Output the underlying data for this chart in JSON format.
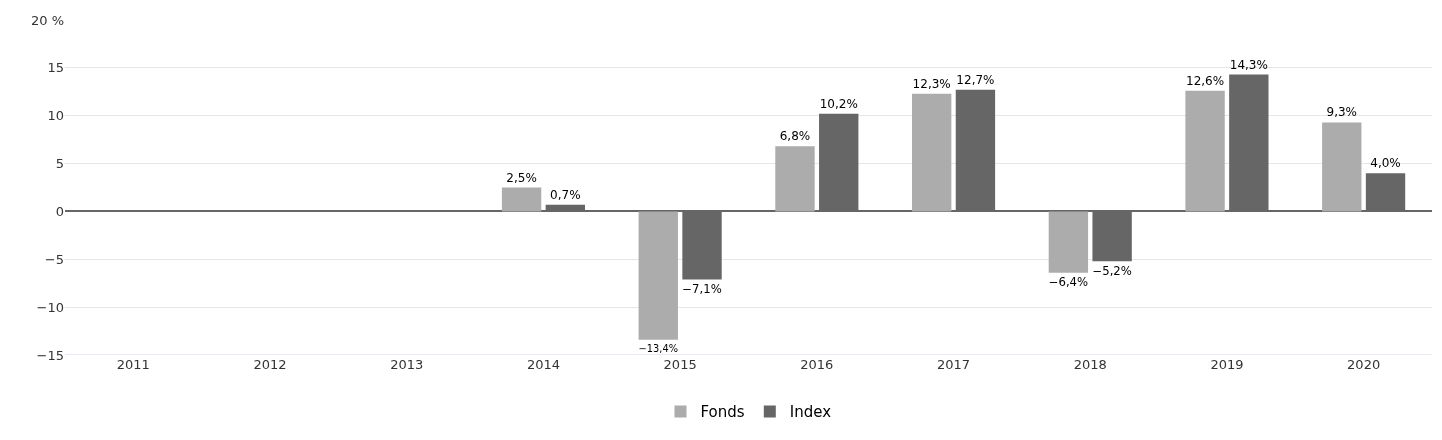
{
  "chart_data": {
    "type": "bar",
    "categories": [
      "2011",
      "2012",
      "2013",
      "2014",
      "2015",
      "2016",
      "2017",
      "2018",
      "2019",
      "2020"
    ],
    "series": [
      {
        "name": "Fonds",
        "color": "#acacac",
        "values": [
          null,
          null,
          null,
          2.5,
          -13.4,
          6.8,
          12.3,
          -6.4,
          12.6,
          9.3
        ],
        "value_labels": [
          null,
          null,
          null,
          "2,5%",
          "−13,4%",
          "6,8%",
          "12,3%",
          "−6,4%",
          "12,6%",
          "9,3%"
        ]
      },
      {
        "name": "Index",
        "color": "#666666",
        "values": [
          null,
          null,
          null,
          0.7,
          -7.1,
          10.2,
          12.7,
          -5.2,
          14.3,
          4.0
        ],
        "value_labels": [
          null,
          null,
          null,
          "0,7%",
          "−7,1%",
          "10,2%",
          "12,7%",
          "−5,2%",
          "14,3%",
          "4,0%"
        ]
      }
    ],
    "ylim": [
      -15,
      20
    ],
    "yticks": [
      {
        "value": -15,
        "label": "−15"
      },
      {
        "value": -10,
        "label": "−10"
      },
      {
        "value": -5,
        "label": "−5"
      },
      0,
      5,
      10,
      15,
      {
        "value": 20,
        "label": "20 %"
      }
    ],
    "grid": "y",
    "legend": "bottom"
  }
}
